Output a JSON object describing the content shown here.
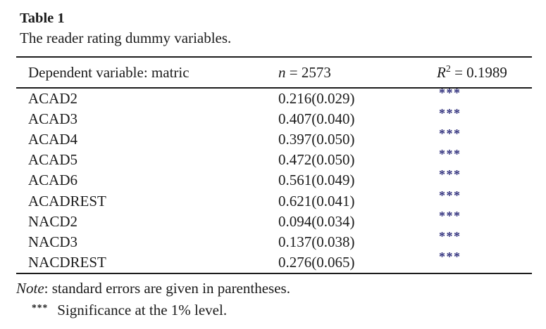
{
  "table": {
    "title": "Table 1",
    "caption": "The reader rating dummy variables.",
    "header": {
      "dependent_variable": "Dependent variable: matric",
      "n_symbol": "n",
      "n_value": "= 2573",
      "r2_symbol": "R",
      "r2_sup": "2",
      "r2_value": "= 0.1989"
    },
    "rows": [
      {
        "label": "ACAD2",
        "value": "0.216(0.029)",
        "sig": "***"
      },
      {
        "label": "ACAD3",
        "value": "0.407(0.040)",
        "sig": "***"
      },
      {
        "label": "ACAD4",
        "value": "0.397(0.050)",
        "sig": "***"
      },
      {
        "label": "ACAD5",
        "value": "0.472(0.050)",
        "sig": "***"
      },
      {
        "label": "ACAD6",
        "value": "0.561(0.049)",
        "sig": "***"
      },
      {
        "label": "ACADREST",
        "value": "0.621(0.041)",
        "sig": "***"
      },
      {
        "label": "NACD2",
        "value": "0.094(0.034)",
        "sig": "***"
      },
      {
        "label": "NACD3",
        "value": "0.137(0.038)",
        "sig": "***"
      },
      {
        "label": "NACDREST",
        "value": "0.276(0.065)",
        "sig": "***"
      }
    ]
  },
  "footnotes": {
    "note_label": "Note",
    "note_text": ": standard errors are given in parentheses.",
    "sig_marker": "***",
    "sig_text": "Significance at the 1% level."
  },
  "colors": {
    "text": "#1b1b1b",
    "significance_star": "#31317d",
    "rule": "#1c1c1c",
    "background": "#ffffff"
  }
}
